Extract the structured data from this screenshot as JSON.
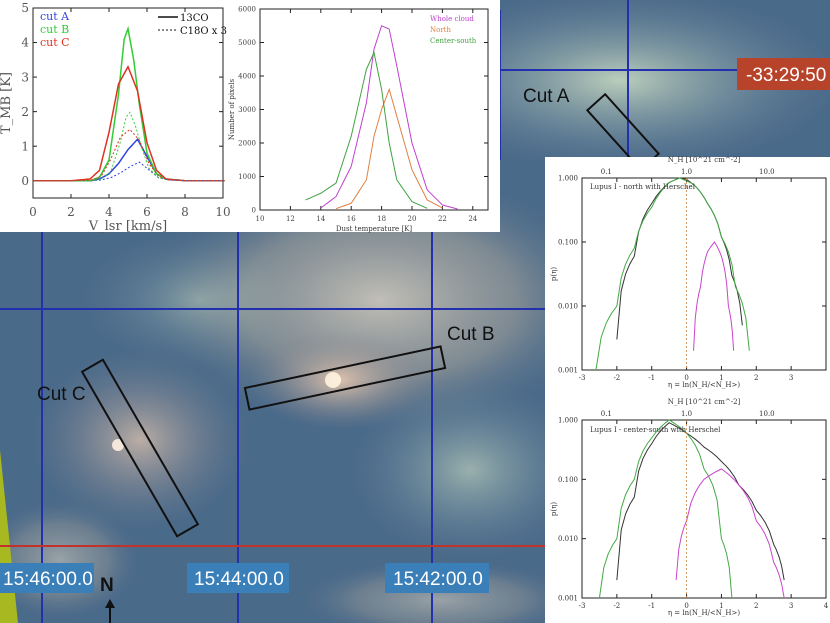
{
  "map": {
    "cuts": [
      "Cut A",
      "Cut B",
      "Cut C"
    ],
    "ra_labels": [
      "15:46:00.0",
      "15:44:00.0",
      "15:42:00.0"
    ],
    "dec_label": "-33:29:50",
    "north": "N",
    "colors": {
      "grid": "#2230b0",
      "red_line": "#c0322a",
      "coord_box": "#3a7fb8",
      "dec_box": "#b8432b"
    }
  },
  "chart_data": [
    {
      "type": "line",
      "xlabel": "V_lsr [km/s]",
      "ylabel": "T_MB [K]",
      "xlim": [
        0,
        10
      ],
      "ylim": [
        -0.5,
        5
      ],
      "xticks": [
        "0",
        "2",
        "4",
        "6",
        "8",
        "10"
      ],
      "yticks": [
        "0",
        "1",
        "2",
        "3",
        "4",
        "5"
      ],
      "legend_cuts": [
        "cut A",
        "cut B",
        "cut C"
      ],
      "legend_lines": [
        "13CO",
        "C18O x 3"
      ],
      "series": [
        {
          "name": "cut A",
          "color": "#3344dd",
          "x": [
            0,
            1,
            2,
            3,
            3.5,
            4,
            4.5,
            5,
            5.5,
            6,
            6.5,
            7,
            8,
            9,
            10
          ],
          "y": [
            0,
            0,
            0,
            0,
            0.05,
            0.2,
            0.5,
            0.9,
            1.2,
            0.7,
            0.2,
            0.05,
            0,
            0,
            0
          ]
        },
        {
          "name": "cut B",
          "color": "#33cc33",
          "x": [
            0,
            1,
            2,
            3,
            3.5,
            4,
            4.5,
            4.8,
            5,
            5.3,
            5.6,
            6,
            6.5,
            7,
            8,
            9,
            10
          ],
          "y": [
            0,
            0,
            0,
            0,
            0.1,
            0.6,
            2.5,
            4.1,
            4.4,
            3.5,
            2.2,
            0.8,
            0.2,
            0.05,
            0,
            0,
            0
          ]
        },
        {
          "name": "cut C",
          "color": "#dd3322",
          "x": [
            0,
            1,
            2,
            3,
            3.5,
            4,
            4.5,
            5,
            5.5,
            6,
            6.5,
            7,
            8,
            9,
            10
          ],
          "y": [
            0,
            0,
            0,
            0.05,
            0.3,
            1.4,
            2.8,
            3.3,
            2.6,
            1.1,
            0.3,
            0.05,
            0,
            0,
            0
          ]
        }
      ]
    },
    {
      "type": "line",
      "xlabel": "Dust temperature [K]",
      "ylabel": "Number of pixels",
      "xlim": [
        10,
        25
      ],
      "ylim": [
        0,
        6000
      ],
      "xticks": [
        "10",
        "12",
        "14",
        "16",
        "18",
        "20",
        "22",
        "24"
      ],
      "yticks": [
        "0",
        "1000",
        "2000",
        "3000",
        "4000",
        "5000",
        "6000"
      ],
      "series": [
        {
          "name": "Whole cloud",
          "color": "#c040d0",
          "x": [
            14,
            15,
            16,
            17,
            17.5,
            18,
            18.5,
            19,
            20,
            21,
            22,
            23
          ],
          "y": [
            60,
            400,
            1300,
            3200,
            4800,
            5500,
            5400,
            4300,
            2000,
            600,
            150,
            30
          ]
        },
        {
          "name": "North",
          "color": "#e08040",
          "x": [
            15,
            16,
            17,
            17.5,
            18,
            18.5,
            19,
            20,
            21,
            22
          ],
          "y": [
            40,
            200,
            900,
            2200,
            3000,
            3600,
            2800,
            1200,
            300,
            60
          ]
        },
        {
          "name": "Center-south",
          "color": "#40a040",
          "x": [
            13,
            14,
            15,
            16,
            17,
            17.5,
            18,
            18.5,
            19,
            20,
            21
          ],
          "y": [
            300,
            500,
            800,
            2200,
            4200,
            4700,
            3600,
            2000,
            900,
            250,
            50
          ]
        }
      ]
    },
    {
      "type": "line",
      "title": "Lupus I - north with Herschel",
      "xlabel": "η = ln(N_H/<N_H>)",
      "ylabel": "p(η)",
      "top_xlabel": "N_H [10^21 cm^-2]",
      "top_xticks": [
        "0.1",
        "1.0",
        "10.0"
      ],
      "xlim": [
        -3,
        4
      ],
      "ylog": true,
      "ylim": [
        0.001,
        1
      ],
      "xticks": [
        "-3",
        "-2",
        "-1",
        "0",
        "1",
        "2",
        "3"
      ],
      "yticks": [
        "0.001",
        "0.010",
        "0.100",
        "1.000"
      ],
      "series": [
        {
          "name": "",
          "color": "#333333",
          "x": [
            -2,
            -1.5,
            -1,
            -0.5,
            -0.2,
            0,
            0.3,
            0.6,
            1,
            1.3,
            1.6
          ],
          "y": [
            0.003,
            0.06,
            0.4,
            0.85,
            1.0,
            0.95,
            0.7,
            0.4,
            0.12,
            0.03,
            0.005
          ]
        },
        {
          "name": "",
          "color": "#44aa44",
          "x": [
            -2.6,
            -2,
            -1.5,
            -1,
            -0.5,
            -0.2,
            0.2,
            0.6,
            1,
            1.4,
            1.8
          ],
          "y": [
            0.001,
            0.01,
            0.08,
            0.35,
            0.85,
            1.0,
            0.8,
            0.4,
            0.12,
            0.02,
            0.002
          ]
        },
        {
          "name": "",
          "color": "#cc44cc",
          "x": [
            0.2,
            0.4,
            0.6,
            0.8,
            1,
            1.2,
            1.35
          ],
          "y": [
            0.002,
            0.02,
            0.07,
            0.1,
            0.06,
            0.01,
            0.002
          ]
        }
      ]
    },
    {
      "type": "line",
      "title": "Lupus I - center-south with Herschel",
      "xlabel": "η = ln(N_H/<N_H>)",
      "ylabel": "p(η)",
      "top_xlabel": "N_H [10^21 cm^-2]",
      "top_xticks": [
        "0.1",
        "1.0",
        "10.0"
      ],
      "xlim": [
        -3,
        4
      ],
      "ylog": true,
      "ylim": [
        0.001,
        1
      ],
      "xticks": [
        "-3",
        "-2",
        "-1",
        "0",
        "1",
        "2",
        "3",
        "4"
      ],
      "yticks": [
        "0.001",
        "0.010",
        "0.100",
        "1.000"
      ],
      "series": [
        {
          "name": "",
          "color": "#333333",
          "x": [
            -2,
            -1.5,
            -1,
            -0.5,
            0,
            0.5,
            1,
            1.5,
            2,
            2.5,
            2.8
          ],
          "y": [
            0.002,
            0.05,
            0.4,
            0.9,
            0.6,
            0.35,
            0.2,
            0.08,
            0.03,
            0.008,
            0.002
          ]
        },
        {
          "name": "",
          "color": "#44aa44",
          "x": [
            -2.5,
            -2,
            -1.5,
            -1,
            -0.5,
            0,
            0.5,
            1,
            1.3
          ],
          "y": [
            0.001,
            0.01,
            0.1,
            0.5,
            1.0,
            0.6,
            0.15,
            0.01,
            0.001
          ]
        },
        {
          "name": "",
          "color": "#cc44cc",
          "x": [
            -0.3,
            0,
            0.5,
            1,
            1.5,
            2,
            2.5,
            2.8
          ],
          "y": [
            0.002,
            0.02,
            0.1,
            0.15,
            0.08,
            0.02,
            0.004,
            0.001
          ]
        }
      ]
    }
  ]
}
